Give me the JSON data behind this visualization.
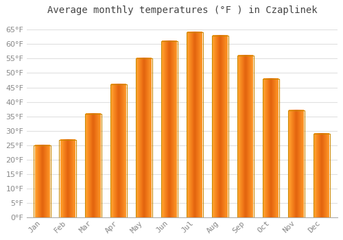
{
  "title": "Average monthly temperatures (°F ) in Czaplinek",
  "months": [
    "Jan",
    "Feb",
    "Mar",
    "Apr",
    "May",
    "Jun",
    "Jul",
    "Aug",
    "Sep",
    "Oct",
    "Nov",
    "Dec"
  ],
  "values": [
    25,
    27,
    36,
    46,
    55,
    61,
    64,
    63,
    56,
    48,
    37,
    29
  ],
  "bar_color": "#FFB300",
  "bar_edge_color": "#CC8800",
  "background_color": "#ffffff",
  "grid_color": "#e0e0e0",
  "text_color": "#888888",
  "title_color": "#444444",
  "ylim_min": 0,
  "ylim_max": 68,
  "yticks": [
    0,
    5,
    10,
    15,
    20,
    25,
    30,
    35,
    40,
    45,
    50,
    55,
    60,
    65
  ],
  "title_fontsize": 10,
  "tick_fontsize": 8,
  "bar_width": 0.65
}
